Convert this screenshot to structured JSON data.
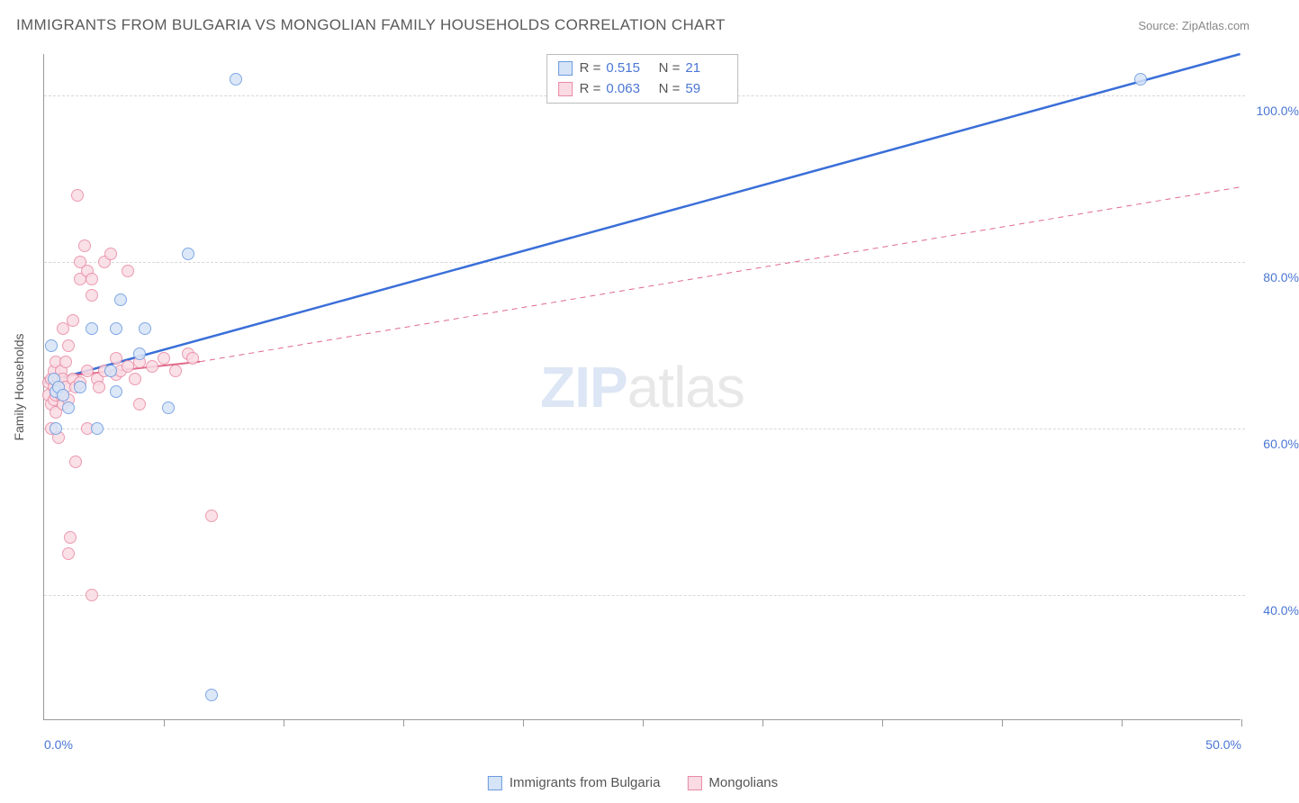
{
  "header": {
    "title": "IMMIGRANTS FROM BULGARIA VS MONGOLIAN FAMILY HOUSEHOLDS CORRELATION CHART",
    "source": "Source: ZipAtlas.com"
  },
  "watermark": {
    "bold": "ZIP",
    "light": "atlas"
  },
  "chart": {
    "type": "scatter",
    "background_color": "#ffffff",
    "grid_color": "#d8d8d8",
    "axis_color": "#999999",
    "text_color": "#555555",
    "tick_label_color": "#4a76d4",
    "title_fontsize": 17,
    "label_fontsize": 14,
    "x_axis": {
      "min": 0,
      "max": 50,
      "ticks": [
        0,
        25,
        50
      ],
      "tick_marks": [
        5,
        10,
        15,
        20,
        25,
        30,
        35,
        40,
        45,
        50
      ],
      "labels": [
        "0.0%",
        "",
        "50.0%"
      ]
    },
    "y_axis": {
      "min": 25,
      "max": 105,
      "label": "Family Households",
      "ticks": [
        40,
        60,
        80,
        100
      ],
      "labels": [
        "40.0%",
        "60.0%",
        "80.0%",
        "100.0%"
      ]
    },
    "series": {
      "bulgaria": {
        "label": "Immigrants from Bulgaria",
        "marker_fill": "#d6e4f7",
        "marker_stroke": "#6a9ae0",
        "marker_size": 14,
        "line_color": "#3a6fd8",
        "line_width": 2.5,
        "line_dash": "none",
        "trend": {
          "x1": 0,
          "y1": 65.5,
          "x2": 50,
          "y2": 105
        },
        "dash_extend": null,
        "points": [
          [
            0.3,
            70
          ],
          [
            0.4,
            66
          ],
          [
            0.5,
            64.5
          ],
          [
            0.5,
            60
          ],
          [
            0.6,
            65
          ],
          [
            0.8,
            64
          ],
          [
            1.0,
            62.5
          ],
          [
            1.5,
            65
          ],
          [
            2.0,
            72
          ],
          [
            2.2,
            60
          ],
          [
            3.0,
            72
          ],
          [
            3.2,
            75.5
          ],
          [
            3.0,
            64.5
          ],
          [
            2.8,
            67
          ],
          [
            4.0,
            69
          ],
          [
            4.2,
            72
          ],
          [
            5.2,
            62.5
          ],
          [
            6.0,
            81
          ],
          [
            7.0,
            28
          ],
          [
            8.0,
            102
          ],
          [
            45.8,
            102
          ]
        ]
      },
      "mongolians": {
        "label": "Mongolians",
        "marker_fill": "#fadbe3",
        "marker_stroke": "#e88aa3",
        "marker_size": 14,
        "line_color": "#e06a8a",
        "line_width": 2,
        "line_dash": "none",
        "trend": {
          "x1": 0,
          "y1": 66,
          "x2": 6.5,
          "y2": 68
        },
        "dash_extend": {
          "x1": 6.5,
          "y1": 68,
          "x2": 50,
          "y2": 89,
          "dash": "6,5",
          "width": 1
        },
        "points": [
          [
            0.2,
            64
          ],
          [
            0.2,
            65.5
          ],
          [
            0.3,
            63
          ],
          [
            0.3,
            66
          ],
          [
            0.3,
            60
          ],
          [
            0.4,
            65
          ],
          [
            0.4,
            67
          ],
          [
            0.4,
            63.5
          ],
          [
            0.5,
            68
          ],
          [
            0.5,
            62
          ],
          [
            0.5,
            64
          ],
          [
            0.6,
            66
          ],
          [
            0.6,
            59
          ],
          [
            0.6,
            65
          ],
          [
            0.7,
            64
          ],
          [
            0.7,
            67
          ],
          [
            0.8,
            63
          ],
          [
            0.8,
            66
          ],
          [
            0.8,
            72
          ],
          [
            0.9,
            65
          ],
          [
            0.9,
            68
          ],
          [
            1.0,
            70
          ],
          [
            1.0,
            63.5
          ],
          [
            1.0,
            45
          ],
          [
            1.1,
            47
          ],
          [
            1.2,
            66
          ],
          [
            1.2,
            73
          ],
          [
            1.3,
            56
          ],
          [
            1.3,
            65
          ],
          [
            1.4,
            88
          ],
          [
            1.5,
            78
          ],
          [
            1.5,
            80
          ],
          [
            1.5,
            65.5
          ],
          [
            1.7,
            82
          ],
          [
            1.8,
            67
          ],
          [
            1.8,
            79
          ],
          [
            1.8,
            60
          ],
          [
            2.0,
            76
          ],
          [
            2.0,
            78
          ],
          [
            2.0,
            40
          ],
          [
            2.2,
            66
          ],
          [
            2.3,
            65
          ],
          [
            2.5,
            80
          ],
          [
            2.5,
            67
          ],
          [
            2.8,
            81
          ],
          [
            3.0,
            68.5
          ],
          [
            3.0,
            66.5
          ],
          [
            3.2,
            67
          ],
          [
            3.5,
            79
          ],
          [
            3.5,
            67.5
          ],
          [
            3.8,
            66
          ],
          [
            4.0,
            68
          ],
          [
            4.0,
            63
          ],
          [
            4.5,
            67.5
          ],
          [
            5.0,
            68.5
          ],
          [
            5.5,
            67
          ],
          [
            6.0,
            69
          ],
          [
            6.2,
            68.5
          ],
          [
            7.0,
            49.5
          ]
        ]
      }
    },
    "stats": [
      {
        "series": "bulgaria",
        "R": "0.515",
        "N": "21"
      },
      {
        "series": "mongolians",
        "R": "0.063",
        "N": "59"
      }
    ]
  }
}
